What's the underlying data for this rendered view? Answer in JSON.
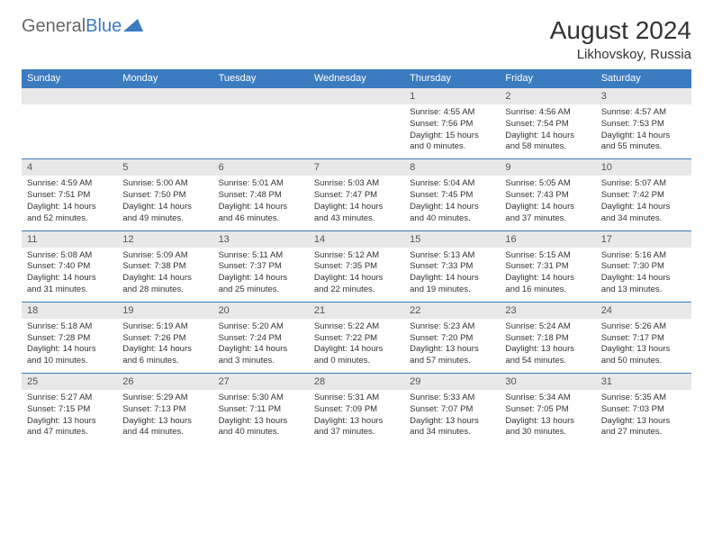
{
  "logo": {
    "text1": "General",
    "text2": "Blue"
  },
  "title": "August 2024",
  "location": "Likhovskoy, Russia",
  "colors": {
    "header_bg": "#3b7bbf",
    "header_text": "#ffffff",
    "daynum_bg": "#e8e8e8",
    "daynum_text": "#555555",
    "body_text": "#333333",
    "border": "#3b7bbf"
  },
  "day_names": [
    "Sunday",
    "Monday",
    "Tuesday",
    "Wednesday",
    "Thursday",
    "Friday",
    "Saturday"
  ],
  "weeks": [
    {
      "nums": [
        "",
        "",
        "",
        "",
        "1",
        "2",
        "3"
      ],
      "cells": [
        {},
        {},
        {},
        {},
        {
          "sunrise": "4:55 AM",
          "sunset": "7:56 PM",
          "dh": "15",
          "dm": "0"
        },
        {
          "sunrise": "4:56 AM",
          "sunset": "7:54 PM",
          "dh": "14",
          "dm": "58"
        },
        {
          "sunrise": "4:57 AM",
          "sunset": "7:53 PM",
          "dh": "14",
          "dm": "55"
        }
      ]
    },
    {
      "nums": [
        "4",
        "5",
        "6",
        "7",
        "8",
        "9",
        "10"
      ],
      "cells": [
        {
          "sunrise": "4:59 AM",
          "sunset": "7:51 PM",
          "dh": "14",
          "dm": "52"
        },
        {
          "sunrise": "5:00 AM",
          "sunset": "7:50 PM",
          "dh": "14",
          "dm": "49"
        },
        {
          "sunrise": "5:01 AM",
          "sunset": "7:48 PM",
          "dh": "14",
          "dm": "46"
        },
        {
          "sunrise": "5:03 AM",
          "sunset": "7:47 PM",
          "dh": "14",
          "dm": "43"
        },
        {
          "sunrise": "5:04 AM",
          "sunset": "7:45 PM",
          "dh": "14",
          "dm": "40"
        },
        {
          "sunrise": "5:05 AM",
          "sunset": "7:43 PM",
          "dh": "14",
          "dm": "37"
        },
        {
          "sunrise": "5:07 AM",
          "sunset": "7:42 PM",
          "dh": "14",
          "dm": "34"
        }
      ]
    },
    {
      "nums": [
        "11",
        "12",
        "13",
        "14",
        "15",
        "16",
        "17"
      ],
      "cells": [
        {
          "sunrise": "5:08 AM",
          "sunset": "7:40 PM",
          "dh": "14",
          "dm": "31"
        },
        {
          "sunrise": "5:09 AM",
          "sunset": "7:38 PM",
          "dh": "14",
          "dm": "28"
        },
        {
          "sunrise": "5:11 AM",
          "sunset": "7:37 PM",
          "dh": "14",
          "dm": "25"
        },
        {
          "sunrise": "5:12 AM",
          "sunset": "7:35 PM",
          "dh": "14",
          "dm": "22"
        },
        {
          "sunrise": "5:13 AM",
          "sunset": "7:33 PM",
          "dh": "14",
          "dm": "19"
        },
        {
          "sunrise": "5:15 AM",
          "sunset": "7:31 PM",
          "dh": "14",
          "dm": "16"
        },
        {
          "sunrise": "5:16 AM",
          "sunset": "7:30 PM",
          "dh": "14",
          "dm": "13"
        }
      ]
    },
    {
      "nums": [
        "18",
        "19",
        "20",
        "21",
        "22",
        "23",
        "24"
      ],
      "cells": [
        {
          "sunrise": "5:18 AM",
          "sunset": "7:28 PM",
          "dh": "14",
          "dm": "10"
        },
        {
          "sunrise": "5:19 AM",
          "sunset": "7:26 PM",
          "dh": "14",
          "dm": "6"
        },
        {
          "sunrise": "5:20 AM",
          "sunset": "7:24 PM",
          "dh": "14",
          "dm": "3"
        },
        {
          "sunrise": "5:22 AM",
          "sunset": "7:22 PM",
          "dh": "14",
          "dm": "0"
        },
        {
          "sunrise": "5:23 AM",
          "sunset": "7:20 PM",
          "dh": "13",
          "dm": "57"
        },
        {
          "sunrise": "5:24 AM",
          "sunset": "7:18 PM",
          "dh": "13",
          "dm": "54"
        },
        {
          "sunrise": "5:26 AM",
          "sunset": "7:17 PM",
          "dh": "13",
          "dm": "50"
        }
      ]
    },
    {
      "nums": [
        "25",
        "26",
        "27",
        "28",
        "29",
        "30",
        "31"
      ],
      "cells": [
        {
          "sunrise": "5:27 AM",
          "sunset": "7:15 PM",
          "dh": "13",
          "dm": "47"
        },
        {
          "sunrise": "5:29 AM",
          "sunset": "7:13 PM",
          "dh": "13",
          "dm": "44"
        },
        {
          "sunrise": "5:30 AM",
          "sunset": "7:11 PM",
          "dh": "13",
          "dm": "40"
        },
        {
          "sunrise": "5:31 AM",
          "sunset": "7:09 PM",
          "dh": "13",
          "dm": "37"
        },
        {
          "sunrise": "5:33 AM",
          "sunset": "7:07 PM",
          "dh": "13",
          "dm": "34"
        },
        {
          "sunrise": "5:34 AM",
          "sunset": "7:05 PM",
          "dh": "13",
          "dm": "30"
        },
        {
          "sunrise": "5:35 AM",
          "sunset": "7:03 PM",
          "dh": "13",
          "dm": "27"
        }
      ]
    }
  ]
}
